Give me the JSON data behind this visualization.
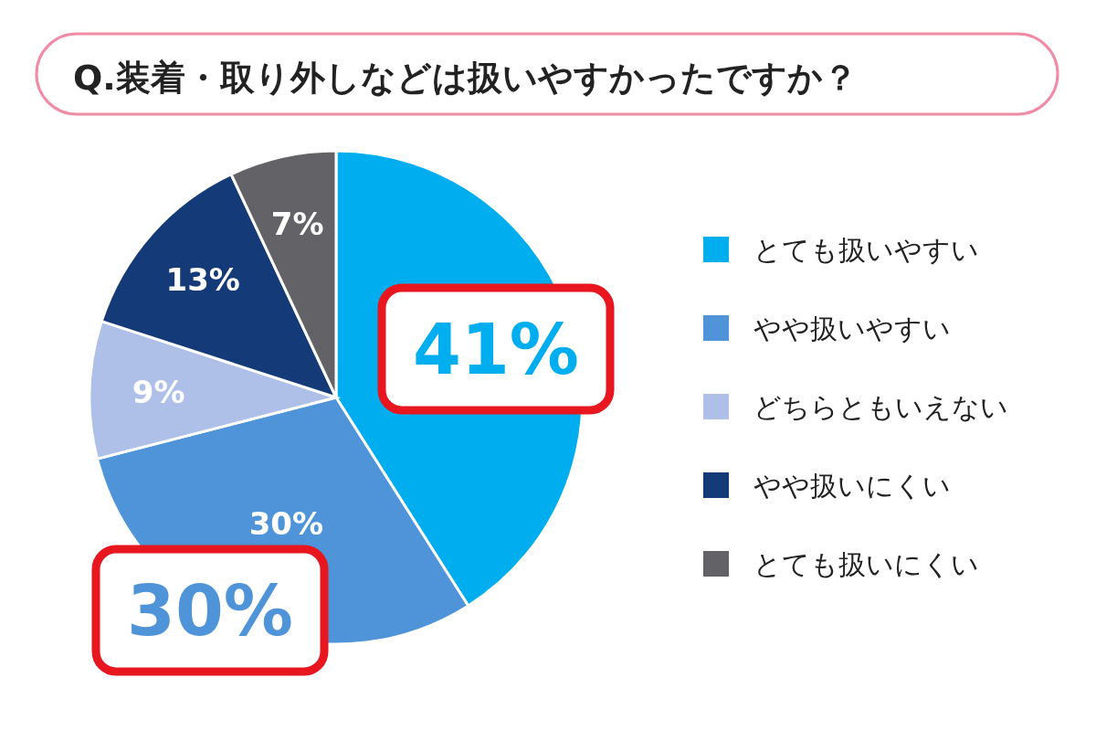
{
  "chart_data": {
    "type": "pie",
    "title": "Q.装着・取り外しなどは扱いやすかったですか？",
    "categories": [
      "とても扱いやすい",
      "やや扱いやすい",
      "どちらともいえない",
      "やや扱いにくい",
      "とても扱いにくい"
    ],
    "values": [
      41,
      30,
      9,
      13,
      7
    ],
    "colors": [
      "#00aeef",
      "#4f94d9",
      "#aebfe8",
      "#143a78",
      "#636267"
    ],
    "value_labels": [
      null,
      "30%",
      "9%",
      "13%",
      "7%"
    ],
    "annotations": [
      {
        "text": "41%",
        "x": "とても扱いやすい"
      },
      {
        "text": "30%",
        "x": "やや扱いやすい"
      }
    ],
    "legend": "right"
  }
}
